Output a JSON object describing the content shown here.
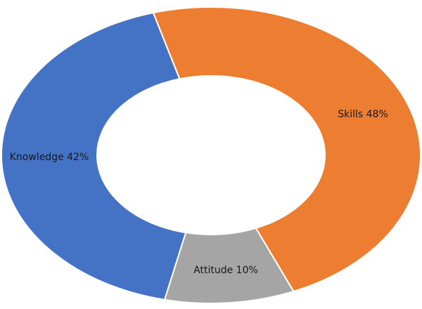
{
  "chart_data": {
    "type": "pie",
    "variant": "donut",
    "title": "",
    "legend": "none",
    "start_angle_deg": 344,
    "slices": [
      {
        "name": "Skills",
        "value": 48,
        "label": "Skills 48%",
        "color": "#ED7D31"
      },
      {
        "name": "Attitude",
        "value": 10,
        "label": "Attitude 10%",
        "color": "#A5A5A5"
      },
      {
        "name": "Knowledge",
        "value": 42,
        "label": "Knowledge 42%",
        "color": "#4472C4"
      }
    ]
  }
}
